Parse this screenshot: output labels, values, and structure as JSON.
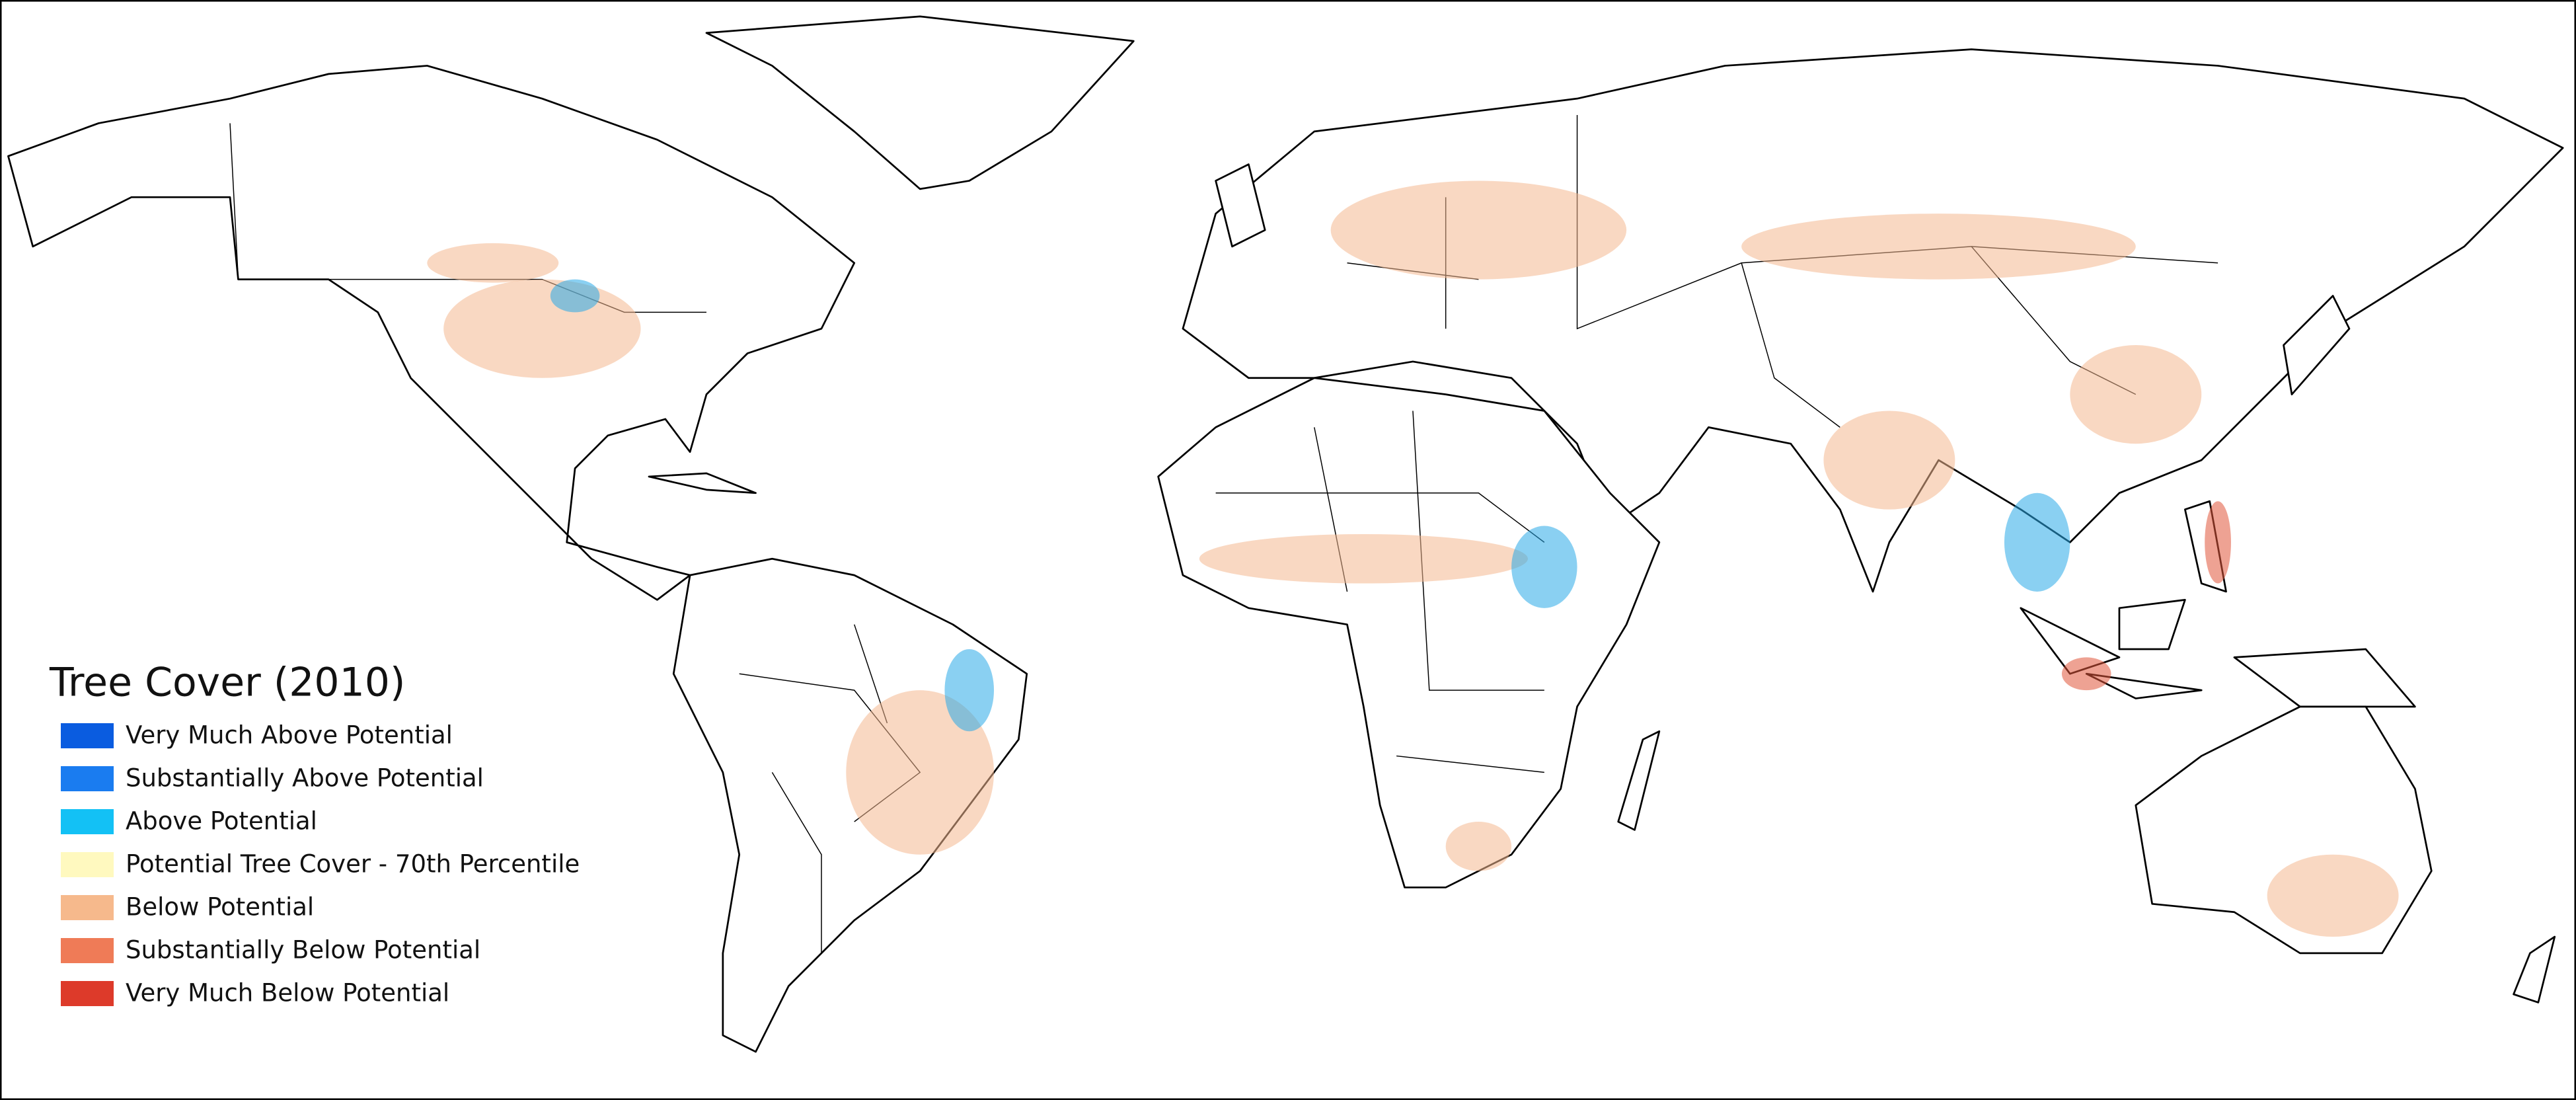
{
  "legend": {
    "title": "Tree Cover (2010)",
    "items": [
      {
        "label": "Very Much Above Potential",
        "color": "#0a5ce0"
      },
      {
        "label": "Substantially Above Potential",
        "color": "#1a7cf0"
      },
      {
        "label": "Above Potential",
        "color": "#13c1f5"
      },
      {
        "label": "Potential Tree Cover - 70th Percentile",
        "color": "#fff9bf"
      },
      {
        "label": "Below Potential",
        "color": "#f6b98c"
      },
      {
        "label": "Substantially Below Potential",
        "color": "#ef7b57"
      },
      {
        "label": "Very Much Below Potential",
        "color": "#dd3a2a"
      }
    ]
  }
}
